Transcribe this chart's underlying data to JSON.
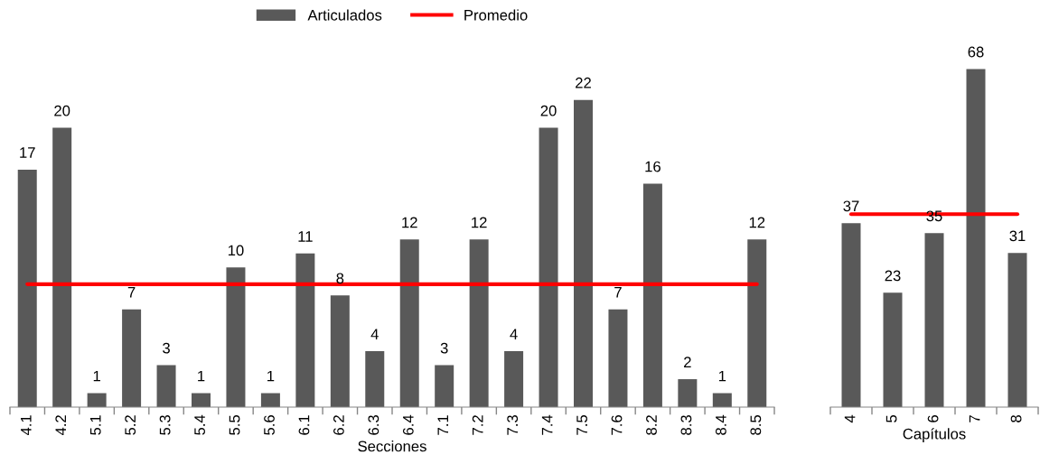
{
  "chart_data": [
    {
      "type": "bar",
      "categories": [
        "4.1",
        "4.2",
        "5.1",
        "5.2",
        "5.3",
        "5.4",
        "5.5",
        "5.6",
        "6.1",
        "6.2",
        "6.3",
        "6.4",
        "7.1",
        "7.2",
        "7.3",
        "7.4",
        "7.5",
        "7.6",
        "8.2",
        "8.3",
        "8.4",
        "8.5"
      ],
      "xlabel": "Secciones",
      "legend": "top",
      "series": [
        {
          "name": "Articulados",
          "color": "#595959",
          "values": [
            17,
            20,
            1,
            7,
            3,
            1,
            10,
            1,
            11,
            8,
            4,
            12,
            3,
            12,
            4,
            20,
            22,
            7,
            16,
            2,
            1,
            12
          ],
          "value_labels": [
            "17",
            "20",
            "1",
            "7",
            "3",
            "1",
            "10",
            "1",
            "11",
            "8",
            "4",
            "12",
            "3",
            "12",
            "4",
            "20",
            "22",
            "7",
            "16",
            "2",
            "1",
            "12"
          ]
        },
        {
          "name": "Promedio",
          "type": "line",
          "color": "#ff0000",
          "values": [
            8.8,
            8.8,
            8.8,
            8.8,
            8.8,
            8.8,
            8.8,
            8.8,
            8.8,
            8.8,
            8.8,
            8.8,
            8.8,
            8.8,
            8.8,
            8.8,
            8.8,
            8.8,
            8.8,
            8.8,
            8.8,
            8.8
          ]
        }
      ]
    },
    {
      "type": "bar",
      "categories": [
        "4",
        "5",
        "6",
        "7",
        "8"
      ],
      "xlabel": "Capítulos",
      "series": [
        {
          "color": "#595959",
          "values": [
            37,
            23,
            35,
            68,
            31
          ],
          "value_labels": [
            "37",
            "23",
            "35",
            "68",
            "31"
          ]
        },
        {
          "type": "line",
          "color": "#ff0000",
          "values": [
            38.8,
            38.8,
            38.8,
            38.8,
            38.8
          ]
        }
      ]
    }
  ]
}
